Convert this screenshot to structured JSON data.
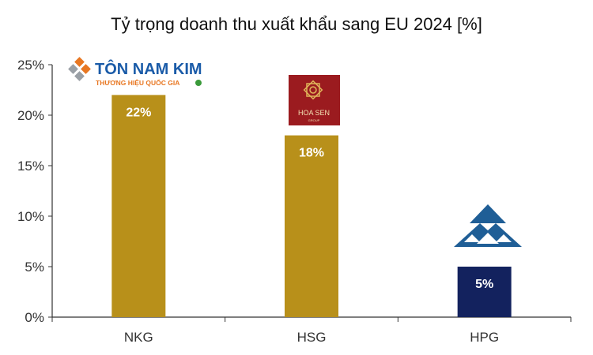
{
  "chart_data": {
    "type": "bar",
    "title": "Tỷ trọng doanh thu xuất khẩu sang EU 2024 [%]",
    "categories": [
      "NKG",
      "HSG",
      "HPG"
    ],
    "values": [
      22,
      18,
      5
    ],
    "data_labels": [
      "22%",
      "18%",
      "5%"
    ],
    "bar_colors": [
      "#B8901A",
      "#B8901A",
      "#13225E"
    ],
    "ylim": [
      0,
      25
    ],
    "yticks": [
      0,
      5,
      10,
      15,
      20,
      25
    ],
    "ytick_labels": [
      "0%",
      "5%",
      "10%",
      "15%",
      "20%",
      "25%"
    ],
    "xlabel": "",
    "ylabel": "",
    "grid": false
  },
  "logos": {
    "nkg": {
      "name": "TÔN NAM KIM",
      "tagline": "THƯƠNG HIỆU QUỐC GIA"
    },
    "hsg": {
      "name": "HOA SEN",
      "sub": "GROUP"
    },
    "hpg": {
      "icon": "hoa-phat-triangle-logo"
    }
  },
  "colors": {
    "axis": "#333333",
    "nkg_logo_blue": "#1A5BA8",
    "nkg_logo_orange": "#E87722",
    "hsg_logo_red": "#9B1B1F",
    "hpg_logo_blue": "#1F5E96"
  }
}
